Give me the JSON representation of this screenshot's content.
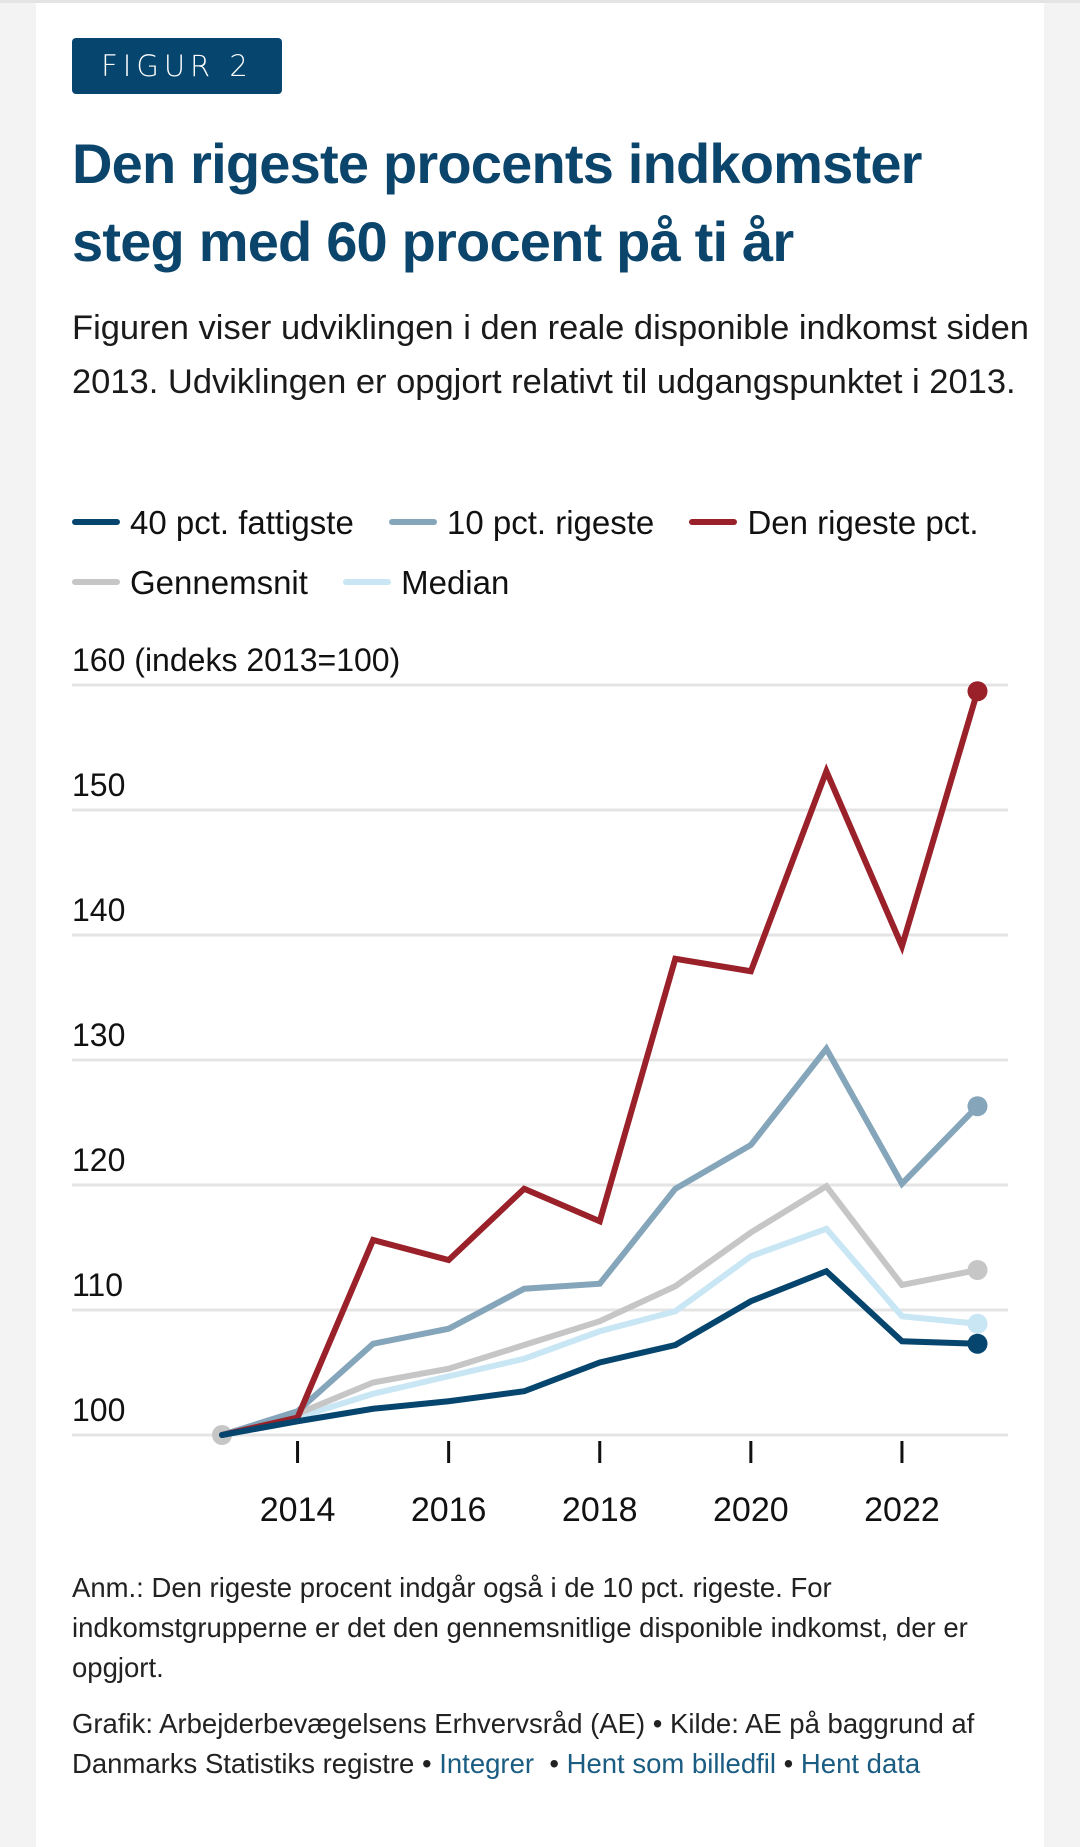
{
  "badge": "FIGUR 2",
  "title": "Den rigeste procents indkomster steg med 60 procent på ti år",
  "subtitle": "Figuren viser udviklingen i den reale disponible indkomst siden 2013. Udviklingen er opgjort relativt til udgangspunktet i 2013.",
  "legend": [
    {
      "label": "40 pct. fattigste",
      "color": "#06456d"
    },
    {
      "label": "10 pct. rigeste",
      "color": "#85a6ba"
    },
    {
      "label": "Den rigeste pct.",
      "color": "#9a2129"
    },
    {
      "label": "Gennemsnit",
      "color": "#c6c6c6"
    },
    {
      "label": "Median",
      "color": "#c9e6f5"
    }
  ],
  "note": "Anm.: Den rigeste procent indgår også i de 10 pct. rigeste. For indkomstgrupperne er det den gennemsnitlige disponible indkomst, der er opgjort.",
  "credit": {
    "text": "Grafik: Arbejderbevægelsens Erhvervsråd (AE) • Kilde: AE på baggrund af Danmarks Statistiks registre",
    "links": [
      "Integrer",
      "Hent som billedfil",
      "Hent data"
    ],
    "separator": "•"
  },
  "chart_data": {
    "type": "line",
    "title": "Den rigeste procents indkomster steg med 60 procent på ti år",
    "ylabel": "(indeks 2013=100)",
    "xlabel": "",
    "ylim": [
      100,
      160
    ],
    "yticks": [
      100,
      110,
      120,
      130,
      140,
      150,
      160
    ],
    "ytick_labels": [
      "100",
      "110",
      "120",
      "130",
      "140",
      "150",
      "160 (indeks 2013=100)"
    ],
    "xlim": [
      2013,
      2023
    ],
    "xticks": [
      2014,
      2016,
      2018,
      2020,
      2022
    ],
    "grid": "horizontal",
    "legend_position": "top",
    "x": [
      2013,
      2014,
      2015,
      2016,
      2017,
      2018,
      2019,
      2020,
      2021,
      2022,
      2023
    ],
    "series": [
      {
        "name": "Median",
        "color": "#c9e6f5",
        "values": [
          100,
          101.4,
          103.3,
          104.7,
          106.1,
          108.3,
          109.9,
          114.3,
          116.5,
          109.5,
          108.9
        ]
      },
      {
        "name": "Gennemsnit",
        "color": "#c6c6c6",
        "values": [
          100,
          101.7,
          104.2,
          105.3,
          107.2,
          109.1,
          111.9,
          116.2,
          119.9,
          112.0,
          113.2
        ]
      },
      {
        "name": "10 pct. rigeste",
        "color": "#85a6ba",
        "values": [
          100,
          101.9,
          107.3,
          108.5,
          111.7,
          112.1,
          119.7,
          123.2,
          130.9,
          120.1,
          126.3
        ]
      },
      {
        "name": "Den rigeste pct.",
        "color": "#9a2129",
        "values": [
          100,
          101.4,
          115.6,
          114.0,
          119.7,
          117.1,
          138.1,
          137.1,
          153.1,
          139.1,
          159.5
        ]
      },
      {
        "name": "40 pct. fattigste",
        "color": "#06456d",
        "values": [
          100,
          101.1,
          102.1,
          102.7,
          103.5,
          105.8,
          107.2,
          110.7,
          113.1,
          107.5,
          107.3
        ]
      }
    ],
    "start_marker_color": "#c6c6c6"
  }
}
